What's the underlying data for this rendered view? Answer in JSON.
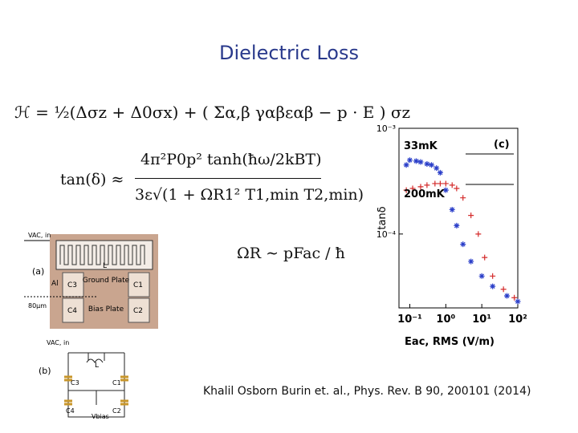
{
  "title": "Dielectric Loss",
  "equations": {
    "hamiltonian": "ℋ = ½(Δσz + Δ0σx) + ( Σα,β γαβεαβ − p · E ) σz",
    "tan_lhs": "tan(δ) ≈",
    "tan_numerator": "4π²P0p² tanh(ħω/2kBT)",
    "tan_denominator": "3ε√(1 + ΩR1² T1,min T2,min)",
    "rabi": "ΩR ∼ pFac / ħ"
  },
  "figure_a": {
    "panel": "(a)",
    "vac_in": "VAC, in",
    "al": "Al",
    "c3": "C3",
    "ground": "Ground Plate",
    "c1": "C1",
    "scale": "80μm",
    "c4": "C4",
    "bias": "Bias Plate",
    "c2": "C2",
    "inductor": "L"
  },
  "figure_b": {
    "panel": "(b)",
    "vac_in": "VAC, in",
    "inductor": "L",
    "c3": "C3",
    "c1": "C1",
    "c4": "C4",
    "c2": "C2",
    "vbias": "Vbias"
  },
  "citation": "Khalil Osborn Burin et. al., Phys. Rev. B 90, 200101 (2014)",
  "chart_data": {
    "type": "scatter",
    "log_x": true,
    "log_y": true,
    "panel_label": "(c)",
    "ylabel": "tanδ",
    "xlabel": "Eac, RMS (V/m)",
    "xlim": [
      0.05,
      100
    ],
    "ylim": [
      2e-05,
      0.001
    ],
    "xticks": [
      {
        "value": 0.1,
        "label": "10⁻¹"
      },
      {
        "value": 1,
        "label": "10⁰"
      },
      {
        "value": 10,
        "label": "10¹"
      },
      {
        "value": 100,
        "label": "10²"
      }
    ],
    "yticks": [
      {
        "value": 0.001,
        "label": "10⁻³"
      },
      {
        "value": 0.0001,
        "label": "10⁻⁴"
      }
    ],
    "series": [
      {
        "name": "33mK",
        "color": "#2b3fc9",
        "marker": "star",
        "x": [
          0.08,
          0.1,
          0.15,
          0.2,
          0.3,
          0.4,
          0.55,
          0.7,
          1,
          1.5,
          2,
          3,
          5,
          10,
          20,
          50,
          100
        ],
        "values": [
          0.00045,
          0.0005,
          0.00049,
          0.00048,
          0.00046,
          0.00045,
          0.00042,
          0.00038,
          0.00026,
          0.00017,
          0.00012,
          8e-05,
          5.5e-05,
          4e-05,
          3.2e-05,
          2.6e-05,
          2.3e-05
        ]
      },
      {
        "name": "200mK",
        "color": "#d42a2a",
        "marker": "plus",
        "x": [
          0.08,
          0.12,
          0.2,
          0.3,
          0.5,
          0.7,
          1,
          1.5,
          2,
          3,
          5,
          8,
          12,
          20,
          40,
          80
        ],
        "values": [
          0.00026,
          0.00027,
          0.00028,
          0.00029,
          0.0003,
          0.0003,
          0.0003,
          0.00029,
          0.00027,
          0.00022,
          0.00015,
          0.0001,
          6e-05,
          4e-05,
          3e-05,
          2.5e-05
        ]
      }
    ]
  }
}
